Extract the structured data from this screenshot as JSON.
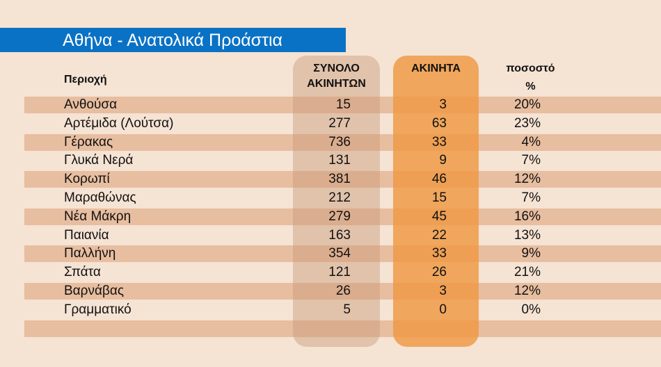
{
  "title": "Αθήνα - Ανατολικά Προάστια",
  "headers": {
    "region": "Περιοχή",
    "total_line1": "ΣΥΝΟΛΟ",
    "total_line2": "ΑΚΙΝΗΤΩΝ",
    "unsold": "ΑΚΙΝΗΤΑ",
    "pct_line1": "ποσοστό",
    "pct_line2": "%"
  },
  "colors": {
    "title_bar": "#0a72c5",
    "background": "#f5e3d4",
    "total_column": "#c99a78",
    "unsold_column": "#ef9942",
    "stripe": "#dda074"
  },
  "chart_data": {
    "type": "table",
    "title": "Αθήνα - Ανατολικά Προάστια",
    "columns": [
      "Περιοχή",
      "ΣΥΝΟΛΟ ΑΚΙΝΗΤΩΝ",
      "ΑΚΙΝΗΤΑ",
      "ποσοστό %"
    ],
    "rows": [
      {
        "region": "Ανθούσα",
        "total": "15",
        "unsold": "3",
        "pct": "20%"
      },
      {
        "region": "Αρτέμιδα (Λούτσα)",
        "total": "277",
        "unsold": "63",
        "pct": "23%"
      },
      {
        "region": "Γέρακας",
        "total": "736",
        "unsold": "33",
        "pct": "4%"
      },
      {
        "region": "Γλυκά Νερά",
        "total": "131",
        "unsold": "9",
        "pct": "7%"
      },
      {
        "region": "Κορωπί",
        "total": "381",
        "unsold": "46",
        "pct": "12%"
      },
      {
        "region": "Μαραθώνας",
        "total": "212",
        "unsold": "15",
        "pct": "7%"
      },
      {
        "region": "Νέα Μάκρη",
        "total": "279",
        "unsold": "45",
        "pct": "16%"
      },
      {
        "region": "Παιανία",
        "total": "163",
        "unsold": "22",
        "pct": "13%"
      },
      {
        "region": "Παλλήνη",
        "total": "354",
        "unsold": "33",
        "pct": "9%"
      },
      {
        "region": "Σπάτα",
        "total": "121",
        "unsold": "26",
        "pct": "21%"
      },
      {
        "region": "Βαρνάβας",
        "total": "26",
        "unsold": "3",
        "pct": "12%"
      },
      {
        "region": "Γραμματικό",
        "total": "5",
        "unsold": "0",
        "pct": "0%"
      }
    ]
  }
}
